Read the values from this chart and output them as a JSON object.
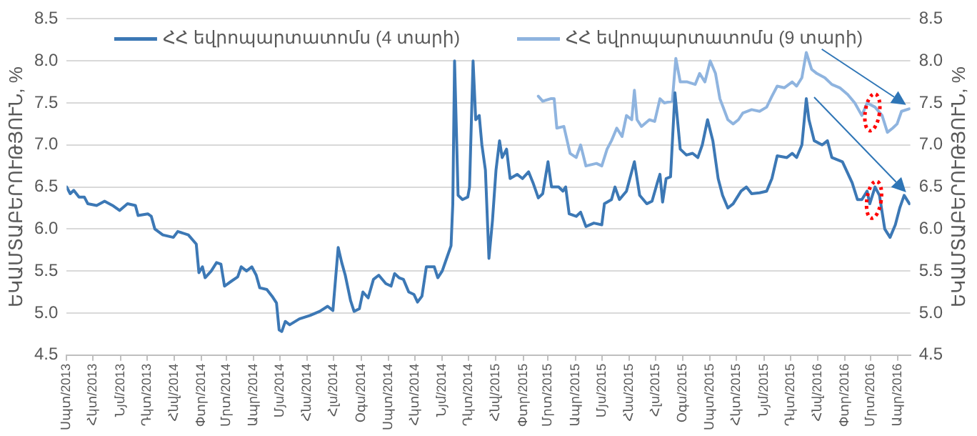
{
  "chart_data": {
    "type": "line",
    "ylabel": "ԵԿԱՄՏԱԲԵՐՈՒԹՅՈՒՆ, %",
    "y2label": "ԵԿԱՄՏԱԲԵՐՈՒԹՅՈՒՆ, %",
    "ylim": [
      4.5,
      8.5
    ],
    "yticks": [
      {
        "value": 4.5,
        "label": "4.5"
      },
      {
        "value": 5,
        "label": "5.0"
      },
      {
        "value": 5.5,
        "label": "5.5"
      },
      {
        "value": 6,
        "label": "6.0"
      },
      {
        "value": 6.5,
        "label": "6.5"
      },
      {
        "value": 7,
        "label": "7.0"
      },
      {
        "value": 7.5,
        "label": "7.5"
      },
      {
        "value": 8,
        "label": "8.0"
      },
      {
        "value": 8.5,
        "label": "8.5"
      }
    ],
    "y2lim": [
      4.5,
      8.5
    ],
    "y2ticks": [
      {
        "value": 4.5,
        "label": "4.5"
      },
      {
        "value": 5,
        "label": "5.0"
      },
      {
        "value": 5.5,
        "label": "5.5"
      },
      {
        "value": 6,
        "label": "6.0"
      },
      {
        "value": 6.5,
        "label": "6.5"
      },
      {
        "value": 7,
        "label": "7.0"
      },
      {
        "value": 7.5,
        "label": "7.5"
      },
      {
        "value": 8,
        "label": "8.0"
      },
      {
        "value": 8.5,
        "label": "8.5"
      }
    ],
    "xlim": [
      "2013-09-01",
      "2016-04-15"
    ],
    "xticks": [
      {
        "value": "2013-09-01",
        "label": "Սպտ/2013"
      },
      {
        "value": "2013-10-01",
        "label": "Հկտ/2013"
      },
      {
        "value": "2013-11-01",
        "label": "Նյմ/2013"
      },
      {
        "value": "2013-12-01",
        "label": "Դկտ/2013"
      },
      {
        "value": "2014-01-01",
        "label": "Հնվ/2014"
      },
      {
        "value": "2014-02-01",
        "label": "Փտր/2014"
      },
      {
        "value": "2014-03-01",
        "label": "Մրտ/2014"
      },
      {
        "value": "2014-04-01",
        "label": "Ապր/2014"
      },
      {
        "value": "2014-05-01",
        "label": "Մյս/2014"
      },
      {
        "value": "2014-06-01",
        "label": "Հնս/2014"
      },
      {
        "value": "2014-07-01",
        "label": "Հլս/2014"
      },
      {
        "value": "2014-08-01",
        "label": "Օգս/2014"
      },
      {
        "value": "2014-09-01",
        "label": "Սպտ/2014"
      },
      {
        "value": "2014-10-01",
        "label": "Հկտ/2014"
      },
      {
        "value": "2014-11-01",
        "label": "Նյմ/2014"
      },
      {
        "value": "2014-12-01",
        "label": "Դկտ/2014"
      },
      {
        "value": "2015-01-01",
        "label": "Հնվ/2015"
      },
      {
        "value": "2015-02-01",
        "label": "Փտր/2015"
      },
      {
        "value": "2015-03-01",
        "label": "Մրտ/2015"
      },
      {
        "value": "2015-04-01",
        "label": "Ապր/2015"
      },
      {
        "value": "2015-05-01",
        "label": "Մյս/2015"
      },
      {
        "value": "2015-06-01",
        "label": "Հնս/2015"
      },
      {
        "value": "2015-07-01",
        "label": "Հլս/2015"
      },
      {
        "value": "2015-08-01",
        "label": "Օգս/2015"
      },
      {
        "value": "2015-09-01",
        "label": "Սպտ/2015"
      },
      {
        "value": "2015-10-01",
        "label": "Հկտ/2015"
      },
      {
        "value": "2015-11-01",
        "label": "Նյմ/2015"
      },
      {
        "value": "2015-12-01",
        "label": "Դկտ/2015"
      },
      {
        "value": "2016-01-01",
        "label": "Հնվ/2016"
      },
      {
        "value": "2016-02-01",
        "label": "Փտր/2016"
      },
      {
        "value": "2016-03-01",
        "label": "Մրտ/2016"
      },
      {
        "value": "2016-04-01",
        "label": "Ապր/2016"
      }
    ],
    "grid": "y",
    "legend": "top",
    "marker": "none",
    "line_style": "solid",
    "series": [
      {
        "name": "ՀՀ եվրոպարտատոմս (4 տարի)",
        "color": "#3c78b5",
        "x": [
          "2013-09-01",
          "2013-09-05",
          "2013-09-09",
          "2013-09-15",
          "2013-09-21",
          "2013-09-25",
          "2013-10-05",
          "2013-10-14",
          "2013-10-23",
          "2013-10-31",
          "2013-11-09",
          "2013-11-18",
          "2013-11-21",
          "2013-12-02",
          "2013-12-06",
          "2013-12-10",
          "2013-12-19",
          "2013-12-31",
          "2014-01-05",
          "2014-01-17",
          "2014-01-26",
          "2014-01-29",
          "2014-02-02",
          "2014-02-05",
          "2014-02-12",
          "2014-02-18",
          "2014-02-23",
          "2014-02-27",
          "2014-03-07",
          "2014-03-14",
          "2014-03-18",
          "2014-03-24",
          "2014-03-30",
          "2014-04-04",
          "2014-04-08",
          "2014-04-16",
          "2014-04-22",
          "2014-04-27",
          "2014-04-30",
          "2014-05-03",
          "2014-05-07",
          "2014-05-12",
          "2014-05-23",
          "2014-06-04",
          "2014-06-15",
          "2014-06-24",
          "2014-06-30",
          "2014-07-06",
          "2014-07-10",
          "2014-07-14",
          "2014-07-20",
          "2014-07-24",
          "2014-07-30",
          "2014-08-03",
          "2014-08-09",
          "2014-08-15",
          "2014-08-21",
          "2014-08-29",
          "2014-09-04",
          "2014-09-08",
          "2014-09-13",
          "2014-09-18",
          "2014-09-24",
          "2014-09-30",
          "2014-10-04",
          "2014-10-09",
          "2014-10-14",
          "2014-10-23",
          "2014-10-27",
          "2014-11-01",
          "2014-11-06",
          "2014-11-11",
          "2014-11-13",
          "2014-11-15",
          "2014-11-19",
          "2014-11-24",
          "2014-11-30",
          "2014-12-02",
          "2014-12-06",
          "2014-12-09",
          "2014-12-13",
          "2014-12-16",
          "2014-12-20",
          "2014-12-24",
          "2014-12-28",
          "2015-01-01",
          "2015-01-05",
          "2015-01-08",
          "2015-01-13",
          "2015-01-17",
          "2015-01-25",
          "2015-01-31",
          "2015-02-07",
          "2015-02-12",
          "2015-02-18",
          "2015-02-23",
          "2015-03-01",
          "2015-03-05",
          "2015-03-13",
          "2015-03-18",
          "2015-03-21",
          "2015-03-25",
          "2015-04-02",
          "2015-04-07",
          "2015-04-13",
          "2015-04-22",
          "2015-05-01",
          "2015-05-04",
          "2015-05-12",
          "2015-05-16",
          "2015-05-21",
          "2015-05-29",
          "2015-06-07",
          "2015-06-13",
          "2015-06-21",
          "2015-06-27",
          "2015-07-03",
          "2015-07-06",
          "2015-07-09",
          "2015-07-13",
          "2015-07-18",
          "2015-07-23",
          "2015-07-29",
          "2015-08-05",
          "2015-08-12",
          "2015-08-18",
          "2015-08-23",
          "2015-08-29",
          "2015-09-04",
          "2015-09-10",
          "2015-09-15",
          "2015-09-21",
          "2015-09-27",
          "2015-10-06",
          "2015-10-12",
          "2015-10-18",
          "2015-10-27",
          "2015-11-04",
          "2015-11-10",
          "2015-11-16",
          "2015-11-27",
          "2015-12-03",
          "2015-12-08",
          "2015-12-14",
          "2015-12-19",
          "2015-12-22",
          "2015-12-28",
          "2016-01-06",
          "2016-01-12",
          "2016-01-17",
          "2016-01-29",
          "2016-02-09",
          "2016-02-15",
          "2016-02-20",
          "2016-02-26",
          "2016-02-29",
          "2016-03-06",
          "2016-03-11",
          "2016-03-17",
          "2016-03-23",
          "2016-03-29",
          "2016-04-03",
          "2016-04-08",
          "2016-04-14"
        ],
        "values": [
          6.5,
          6.42,
          6.46,
          6.38,
          6.38,
          6.3,
          6.28,
          6.33,
          6.28,
          6.22,
          6.3,
          6.28,
          6.16,
          6.18,
          6.15,
          6.0,
          5.93,
          5.9,
          5.97,
          5.93,
          5.82,
          5.48,
          5.55,
          5.42,
          5.5,
          5.6,
          5.58,
          5.32,
          5.38,
          5.43,
          5.55,
          5.5,
          5.55,
          5.45,
          5.3,
          5.28,
          5.2,
          5.12,
          4.8,
          4.78,
          4.9,
          4.86,
          4.93,
          4.97,
          5.02,
          5.08,
          5.03,
          5.78,
          5.6,
          5.45,
          5.15,
          5.02,
          5.05,
          5.25,
          5.18,
          5.4,
          5.45,
          5.35,
          5.32,
          5.47,
          5.42,
          5.4,
          5.25,
          5.22,
          5.13,
          5.2,
          5.55,
          5.55,
          5.42,
          5.5,
          5.65,
          5.8,
          6.3,
          8.0,
          6.4,
          6.35,
          6.38,
          6.5,
          8.0,
          7.3,
          7.35,
          7.0,
          6.7,
          5.65,
          6.1,
          6.7,
          7.05,
          6.85,
          6.95,
          6.6,
          6.65,
          6.6,
          6.68,
          6.55,
          6.37,
          6.42,
          6.8,
          6.5,
          6.5,
          6.45,
          6.5,
          6.18,
          6.15,
          6.2,
          6.03,
          6.07,
          6.05,
          6.3,
          6.35,
          6.5,
          6.35,
          6.45,
          6.8,
          6.4,
          6.3,
          6.33,
          6.55,
          6.65,
          6.32,
          6.6,
          6.62,
          7.62,
          6.95,
          6.88,
          6.9,
          6.85,
          7.0,
          7.3,
          7.05,
          6.6,
          6.4,
          6.25,
          6.3,
          6.45,
          6.5,
          6.42,
          6.43,
          6.45,
          6.6,
          6.87,
          6.85,
          6.9,
          6.85,
          7.0,
          7.55,
          7.3,
          7.05,
          7.0,
          7.05,
          6.85,
          6.8,
          6.55,
          6.35,
          6.35,
          6.45,
          6.3,
          6.5,
          6.4,
          6.0,
          5.9,
          6.05,
          6.25,
          6.4,
          6.3
        ]
      },
      {
        "name": "ՀՀ եվրոպարտատոմս (9 տարի)",
        "color": "#8fb4df",
        "x": [
          "2015-02-18",
          "2015-02-23",
          "2015-03-04",
          "2015-03-08",
          "2015-03-11",
          "2015-03-19",
          "2015-03-26",
          "2015-04-02",
          "2015-04-07",
          "2015-04-13",
          "2015-04-25",
          "2015-05-01",
          "2015-05-07",
          "2015-05-12",
          "2015-05-18",
          "2015-05-24",
          "2015-05-29",
          "2015-06-04",
          "2015-06-07",
          "2015-06-10",
          "2015-06-15",
          "2015-06-24",
          "2015-06-30",
          "2015-07-06",
          "2015-07-11",
          "2015-07-20",
          "2015-07-24",
          "2015-07-29",
          "2015-08-06",
          "2015-08-15",
          "2015-08-20",
          "2015-08-26",
          "2015-09-01",
          "2015-09-07",
          "2015-09-12",
          "2015-09-21",
          "2015-09-27",
          "2015-10-03",
          "2015-10-08",
          "2015-10-18",
          "2015-10-27",
          "2015-11-04",
          "2015-11-10",
          "2015-11-16",
          "2015-11-24",
          "2015-12-03",
          "2015-12-08",
          "2015-12-14",
          "2015-12-19",
          "2015-12-25",
          "2015-12-31",
          "2016-01-09",
          "2016-01-17",
          "2016-01-26",
          "2016-02-04",
          "2016-02-12",
          "2016-02-20",
          "2016-02-26",
          "2016-03-06",
          "2016-03-14",
          "2016-03-20",
          "2016-03-26",
          "2016-03-31",
          "2016-04-05",
          "2016-04-14"
        ],
        "values": [
          7.58,
          7.52,
          7.55,
          7.55,
          7.2,
          7.22,
          6.9,
          6.85,
          7.0,
          6.75,
          6.78,
          6.75,
          6.95,
          7.05,
          7.2,
          7.1,
          7.35,
          7.3,
          7.65,
          7.3,
          7.22,
          7.3,
          7.28,
          7.55,
          7.5,
          7.52,
          8.03,
          7.75,
          7.75,
          7.72,
          7.85,
          7.75,
          8.0,
          7.85,
          7.55,
          7.3,
          7.25,
          7.3,
          7.38,
          7.42,
          7.4,
          7.45,
          7.58,
          7.7,
          7.68,
          7.75,
          7.7,
          7.8,
          8.1,
          7.9,
          7.85,
          7.8,
          7.72,
          7.68,
          7.6,
          7.5,
          7.35,
          7.5,
          7.45,
          7.35,
          7.15,
          7.2,
          7.25,
          7.4,
          7.43
        ]
      }
    ]
  }
}
